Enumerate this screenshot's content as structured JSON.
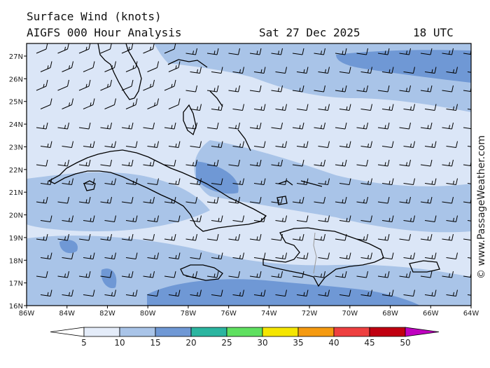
{
  "header": {
    "title": "Surface Wind (knots)",
    "model": "AIGFS 000 Hour Analysis",
    "date": "Sat 27 Dec 2025",
    "time": "18 UTC"
  },
  "credit": "© www.PassageWeather.com",
  "map": {
    "lat_labels": [
      "27N",
      "26N",
      "25N",
      "24N",
      "23N",
      "22N",
      "21N",
      "20N",
      "19N",
      "18N",
      "17N",
      "16N"
    ],
    "lon_labels": [
      "86W",
      "84W",
      "82W",
      "80W",
      "78W",
      "76W",
      "74W",
      "72W",
      "70W",
      "68W",
      "66W",
      "64W"
    ]
  },
  "colorbar": {
    "labels": [
      "5",
      "10",
      "15",
      "20",
      "25",
      "30",
      "35",
      "40",
      "45",
      "50"
    ],
    "colors": [
      "#e4ecf9",
      "#a9c4e8",
      "#6f98d5",
      "#2bb5a0",
      "#5fe060",
      "#f5e600",
      "#f59a10",
      "#ee4040",
      "#c00010",
      "#c000c0"
    ]
  }
}
